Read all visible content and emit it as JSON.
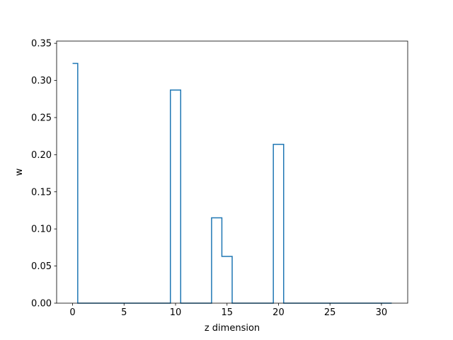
{
  "chart_data": {
    "type": "line",
    "drawstyle": "steps-mid",
    "xlabel": "z dimension",
    "ylabel": "w",
    "xlim": [
      -1.55,
      32.55
    ],
    "ylim": [
      0,
      0.353
    ],
    "xticks": [
      0,
      5,
      10,
      15,
      20,
      25,
      30
    ],
    "yticks": [
      0.0,
      0.05,
      0.1,
      0.15,
      0.2,
      0.25,
      0.3,
      0.35
    ],
    "xtick_labels": [
      "0",
      "5",
      "10",
      "15",
      "20",
      "25",
      "30"
    ],
    "ytick_labels": [
      "0.00",
      "0.05",
      "0.10",
      "0.15",
      "0.20",
      "0.25",
      "0.30",
      "0.35"
    ],
    "grid": false,
    "color": "#1f77b4",
    "series": [
      {
        "x": [
          0,
          1,
          2,
          3,
          4,
          5,
          6,
          7,
          8,
          9,
          10,
          11,
          12,
          13,
          14,
          15,
          16,
          17,
          18,
          19,
          20,
          21,
          22,
          23,
          24,
          25,
          26,
          27,
          28,
          29,
          30,
          31
        ],
        "values": [
          0.323,
          0,
          0,
          0,
          0,
          0,
          0,
          0,
          0,
          0,
          0.287,
          0,
          0,
          0,
          0.115,
          0.063,
          0,
          0,
          0,
          0,
          0.214,
          0,
          0,
          0,
          0,
          0,
          0,
          0,
          0,
          0,
          0,
          0
        ]
      }
    ]
  }
}
